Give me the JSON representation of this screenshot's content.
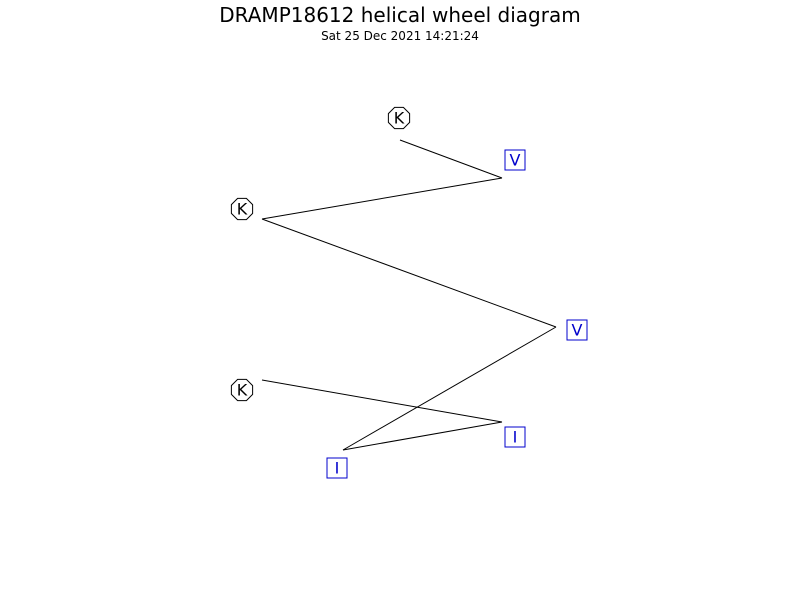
{
  "title": "DRAMP18612 helical wheel diagram",
  "timestamp": "Sat 25 Dec 2021 14:21:24",
  "colors": {
    "line": "#000000",
    "hydrophobic": "#0000cc",
    "charged": "#000000"
  },
  "residues": [
    {
      "letter": "K",
      "shape": "octagon",
      "kind": "charged"
    },
    {
      "letter": "V",
      "shape": "square",
      "kind": "hydrophobic"
    },
    {
      "letter": "K",
      "shape": "octagon",
      "kind": "charged"
    },
    {
      "letter": "V",
      "shape": "square",
      "kind": "hydrophobic"
    },
    {
      "letter": "I",
      "shape": "square",
      "kind": "hydrophobic"
    },
    {
      "letter": "I",
      "shape": "square",
      "kind": "hydrophobic"
    },
    {
      "letter": "K",
      "shape": "octagon",
      "kind": "charged"
    }
  ]
}
